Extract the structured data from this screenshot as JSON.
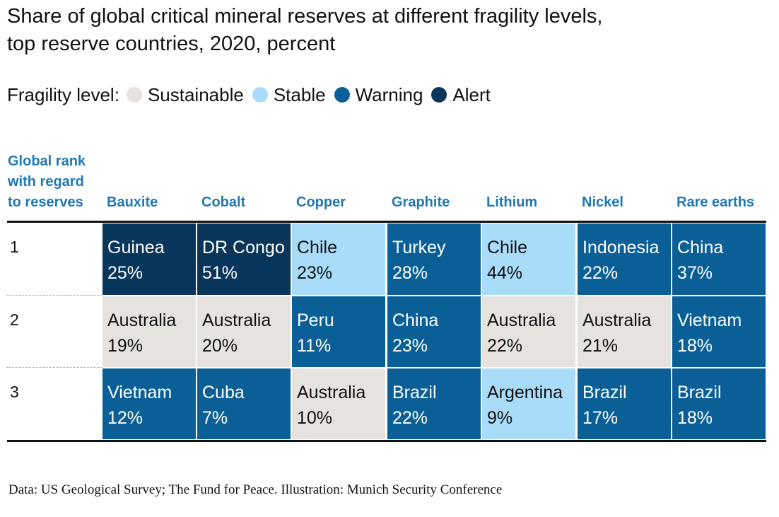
{
  "title_line1": "Share of global critical mineral reserves at different fragility levels,",
  "title_line2": "top reserve countries, 2020, percent",
  "legend": {
    "label": "Fragility level:",
    "items": [
      {
        "name": "Sustainable",
        "color": "#e6e2de"
      },
      {
        "name": "Stable",
        "color": "#a8dcf8"
      },
      {
        "name": "Warning",
        "color": "#0a5f96"
      },
      {
        "name": "Alert",
        "color": "#08365a"
      }
    ]
  },
  "rank_header": [
    "Global rank",
    "with regard",
    "to reserves"
  ],
  "source": "Data: US Geological Survey; The Fund for Peace. Illustration: Munich Security Conference",
  "chart_data": {
    "type": "table",
    "columns": [
      "Bauxite",
      "Cobalt",
      "Copper",
      "Graphite",
      "Lithium",
      "Nickel",
      "Rare earths"
    ],
    "ranks": [
      "1",
      "2",
      "3"
    ],
    "cells": [
      [
        {
          "country": "Guinea",
          "share": "25%",
          "level": "Alert"
        },
        {
          "country": "DR Congo",
          "share": "51%",
          "level": "Alert"
        },
        {
          "country": "Chile",
          "share": "23%",
          "level": "Stable"
        },
        {
          "country": "Turkey",
          "share": "28%",
          "level": "Warning"
        },
        {
          "country": "Chile",
          "share": "44%",
          "level": "Stable"
        },
        {
          "country": "Indonesia",
          "share": "22%",
          "level": "Warning"
        },
        {
          "country": "China",
          "share": "37%",
          "level": "Warning"
        }
      ],
      [
        {
          "country": "Australia",
          "share": "19%",
          "level": "Sustainable"
        },
        {
          "country": "Australia",
          "share": "20%",
          "level": "Sustainable"
        },
        {
          "country": "Peru",
          "share": "11%",
          "level": "Warning"
        },
        {
          "country": "China",
          "share": "23%",
          "level": "Warning"
        },
        {
          "country": "Australia",
          "share": "22%",
          "level": "Sustainable"
        },
        {
          "country": "Australia",
          "share": "21%",
          "level": "Sustainable"
        },
        {
          "country": "Vietnam",
          "share": "18%",
          "level": "Warning"
        }
      ],
      [
        {
          "country": "Vietnam",
          "share": "12%",
          "level": "Warning"
        },
        {
          "country": "Cuba",
          "share": "7%",
          "level": "Warning"
        },
        {
          "country": "Australia",
          "share": "10%",
          "level": "Sustainable"
        },
        {
          "country": "Brazil",
          "share": "22%",
          "level": "Warning"
        },
        {
          "country": "Argentina",
          "share": "9%",
          "level": "Stable"
        },
        {
          "country": "Brazil",
          "share": "17%",
          "level": "Warning"
        },
        {
          "country": "Brazil",
          "share": "18%",
          "level": "Warning"
        }
      ]
    ]
  }
}
